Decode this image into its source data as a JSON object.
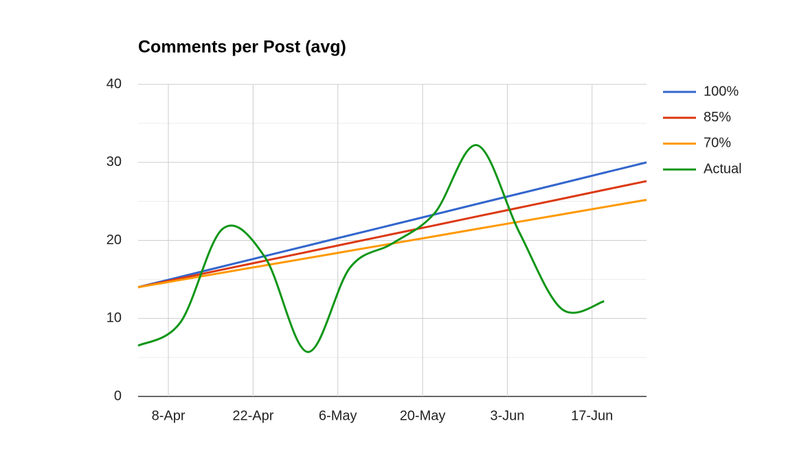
{
  "chart_data": {
    "type": "line",
    "title": "Comments per Post (avg)",
    "x": [
      "04-03",
      "04-10",
      "04-17",
      "04-24",
      "05-01",
      "05-08",
      "05-15",
      "05-22",
      "05-29",
      "06-05",
      "06-12",
      "06-19",
      "06-26"
    ],
    "series": [
      {
        "name": "100%",
        "color": "#3366cc",
        "values": [
          14,
          15.33,
          16.67,
          18,
          19.33,
          20.67,
          22,
          23.33,
          24.67,
          26,
          27.33,
          28.67,
          30
        ]
      },
      {
        "name": "85%",
        "color": "#dc3912",
        "values": [
          14,
          15.13,
          16.27,
          17.4,
          18.53,
          19.67,
          20.8,
          21.93,
          23.07,
          24.2,
          25.33,
          26.47,
          27.6
        ]
      },
      {
        "name": "70%",
        "color": "#ff9900",
        "values": [
          14,
          14.93,
          15.87,
          16.8,
          17.73,
          18.67,
          19.6,
          20.53,
          21.47,
          22.4,
          23.33,
          24.27,
          25.2
        ]
      },
      {
        "name": "Actual",
        "color": "#109618",
        "values": [
          6.5,
          9.5,
          21.5,
          17.8,
          5.7,
          16.5,
          19.6,
          23.5,
          32.2,
          21,
          11.2,
          12.2,
          null
        ]
      }
    ],
    "xlim": [
      "04-03",
      "06-26"
    ],
    "xticks": [
      {
        "value": "04-08",
        "label": "8-Apr"
      },
      {
        "value": "04-22",
        "label": "22-Apr"
      },
      {
        "value": "05-06",
        "label": "6-May"
      },
      {
        "value": "05-20",
        "label": "20-May"
      },
      {
        "value": "06-03",
        "label": "3-Jun"
      },
      {
        "value": "06-17",
        "label": "17-Jun"
      }
    ],
    "ylim": [
      0,
      40
    ],
    "yticks": [
      0,
      10,
      20,
      30,
      40
    ],
    "minor_yticks": [
      5,
      15,
      25,
      35
    ],
    "grid": true,
    "legend": "right",
    "smooth": true
  }
}
